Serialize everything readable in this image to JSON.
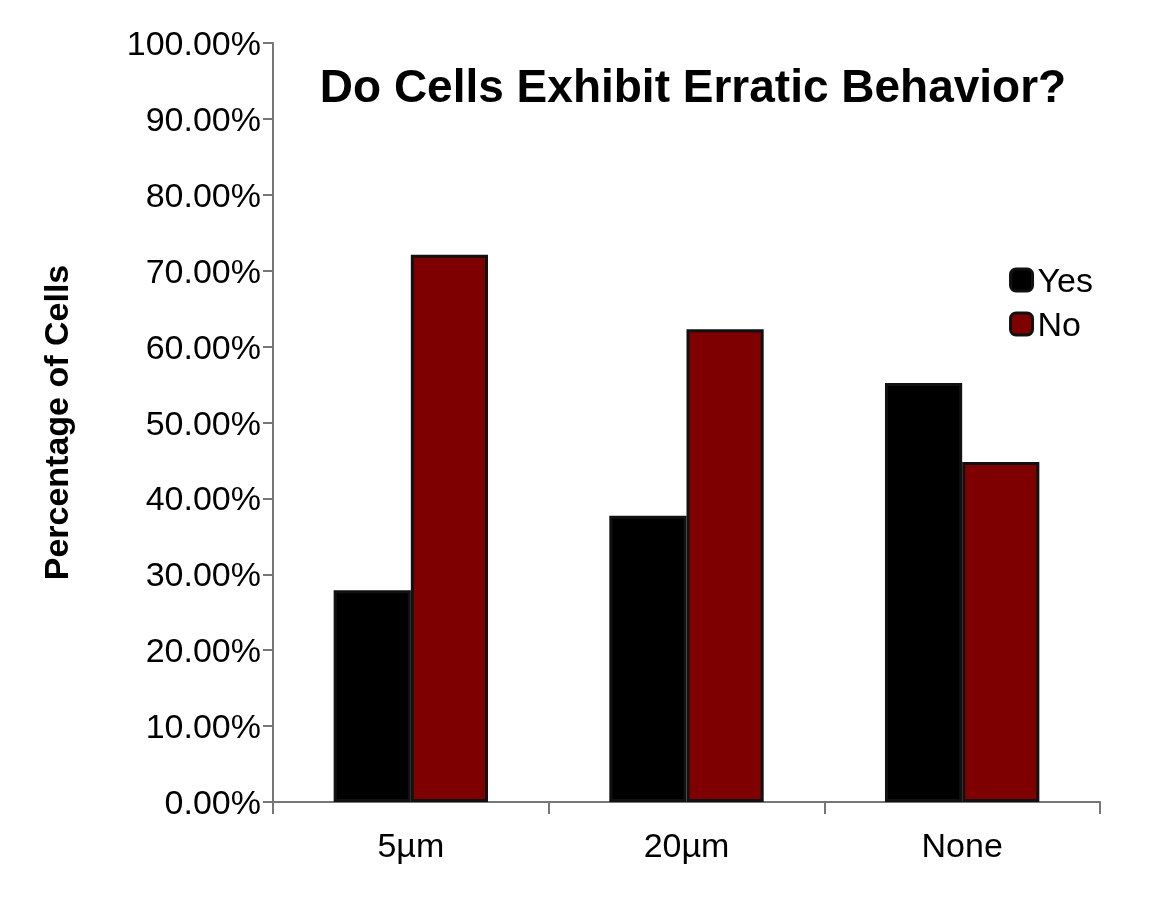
{
  "chart_data": {
    "type": "bar",
    "title": "Do Cells Exhibit Erratic Behavior?",
    "ylabel": "Percentage of Cells",
    "categories": [
      "5µm",
      "20µm",
      "None"
    ],
    "series": [
      {
        "name": "Yes",
        "color": "#000000",
        "values": [
          27.9,
          37.7,
          55.2
        ]
      },
      {
        "name": "No",
        "color": "#7f0000",
        "values": [
          72.1,
          62.3,
          44.8
        ]
      }
    ],
    "ylim": [
      0,
      100
    ],
    "yticks": [
      {
        "value": 0,
        "label": "0.00%"
      },
      {
        "value": 10,
        "label": "10.00%"
      },
      {
        "value": 20,
        "label": "20.00%"
      },
      {
        "value": 30,
        "label": "30.00%"
      },
      {
        "value": 40,
        "label": "40.00%"
      },
      {
        "value": 50,
        "label": "50.00%"
      },
      {
        "value": 60,
        "label": "60.00%"
      },
      {
        "value": 70,
        "label": "70.00%"
      },
      {
        "value": 80,
        "label": "80.00%"
      },
      {
        "value": 90,
        "label": "90.00%"
      },
      {
        "value": 100,
        "label": "100.00%"
      }
    ],
    "grid": false,
    "legend": "top right"
  }
}
